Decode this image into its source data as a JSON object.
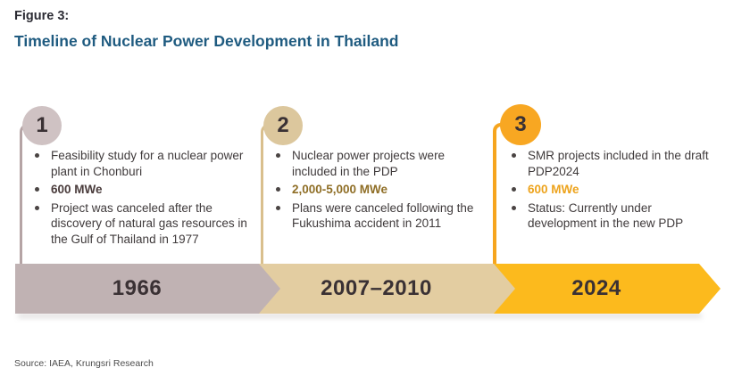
{
  "figure_label": "Figure 3:",
  "title": "Timeline of Nuclear Power Development in Thailand",
  "source": "Source: IAEA, Krungsri Research",
  "palette": {
    "title_blue": "#1f5b80",
    "heading_dark": "#2b2b33",
    "body_text": "#3f3a3b",
    "year_text": "#3a3134"
  },
  "stages": [
    {
      "number": "1",
      "period": "1966",
      "bullets": [
        "Feasibility study for a nuclear power plant in Chonburi",
        "600 MWe",
        "Project was canceled after the discovery of natural gas resources in the Gulf of Thailand in 1977"
      ],
      "colors": {
        "circle": "#cfc2c3",
        "connector": "#b5a4a5",
        "bar": "#c0b2b3",
        "emphasis": "#4a3c3c"
      }
    },
    {
      "number": "2",
      "period": "2007–2010",
      "bullets": [
        "Nuclear power projects were included in the PDP",
        "2,000-5,000 MWe",
        "Plans were canceled following the Fukushima accident in 2011"
      ],
      "colors": {
        "circle": "#dcc79d",
        "connector": "#d9bf8d",
        "bar": "#e3cda1",
        "emphasis": "#8f6e26"
      }
    },
    {
      "number": "3",
      "period": "2024",
      "bullets": [
        "SMR projects included in the draft PDP2024",
        "600 MWe",
        "Status: Currently under development in the new PDP"
      ],
      "colors": {
        "circle": "#f8a722",
        "connector": "#f6a51e",
        "bar": "#fcba1d",
        "emphasis": "#eda31c"
      }
    }
  ]
}
